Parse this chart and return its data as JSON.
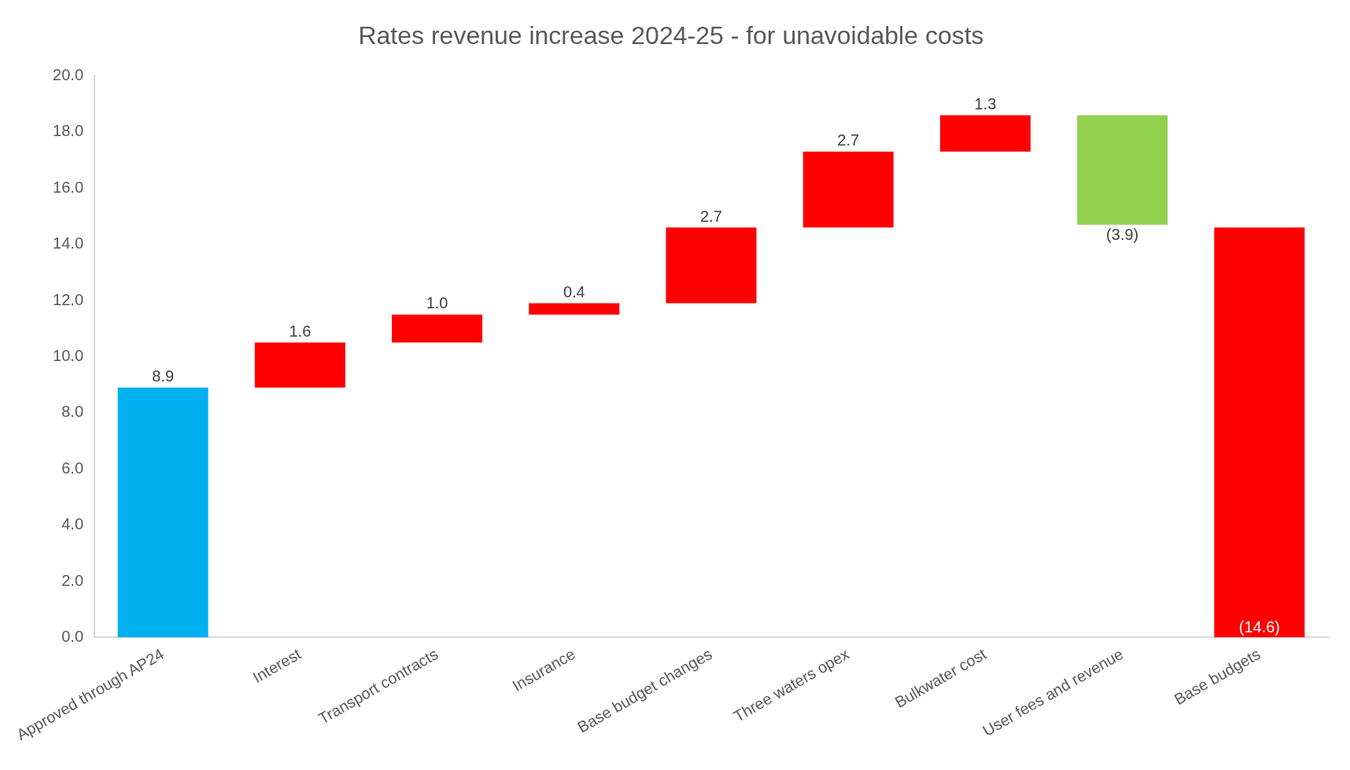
{
  "chart_data": {
    "type": "bar",
    "title": "Rates revenue increase 2024-25 - for unavoidable costs",
    "categories": [
      "Approved through AP24",
      "Interest",
      "Transport contracts",
      "Insurance",
      "Base budget changes",
      "Three waters opex",
      "Bulkwater cost",
      "User fees and revenue",
      "Base budgets"
    ],
    "values": [
      8.9,
      1.6,
      1.0,
      0.4,
      2.7,
      2.7,
      1.3,
      -3.9,
      -14.6
    ],
    "base": [
      0,
      8.9,
      10.5,
      11.5,
      11.9,
      14.6,
      17.3,
      18.6,
      14.6
    ],
    "colors": [
      "#00b0f0",
      "#ff0000",
      "#ff0000",
      "#ff0000",
      "#ff0000",
      "#ff0000",
      "#ff0000",
      "#92d050",
      "#ff0000"
    ],
    "value_labels": [
      "8.9",
      "1.6",
      "1.0",
      "0.4",
      "2.7",
      "2.7",
      "1.3",
      "(3.9)",
      "(14.6)"
    ],
    "ylim": [
      0,
      20
    ],
    "yticks": [
      {
        "value": 0,
        "label": "0.0"
      },
      {
        "value": 2,
        "label": "2.0"
      },
      {
        "value": 4,
        "label": "4.0"
      },
      {
        "value": 6,
        "label": "6.0"
      },
      {
        "value": 8,
        "label": "8.0"
      },
      {
        "value": 10,
        "label": "10.0"
      },
      {
        "value": 12,
        "label": "12.0"
      },
      {
        "value": 14,
        "label": "14.0"
      },
      {
        "value": 16,
        "label": "16.0"
      },
      {
        "value": 18,
        "label": "18.0"
      },
      {
        "value": 20,
        "label": "20.0"
      }
    ],
    "grid": false,
    "legend": false
  }
}
